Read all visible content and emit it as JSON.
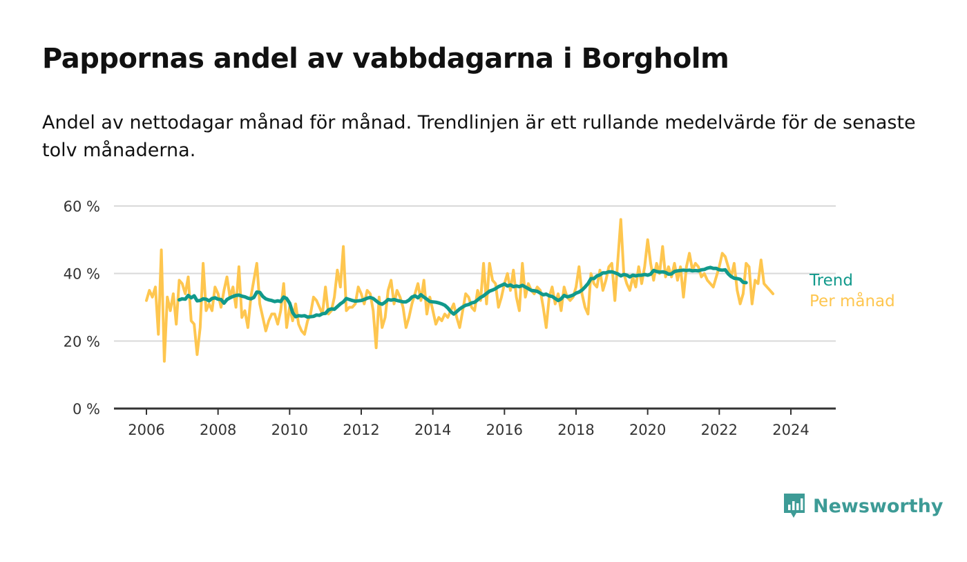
{
  "title": "Pappornas andel av vabbdagarna i Borgholm",
  "subtitle": "Andel av nettodagar månad för månad. Trendlinjen är ett rullande medelvärde för de senaste tolv månaderna.",
  "brand": {
    "name": "Newsworthy",
    "color": "#3d9b96"
  },
  "chart_data": {
    "type": "line",
    "title": "Pappornas andel av vabbdagarna i Borgholm",
    "xlabel": "",
    "ylabel": "",
    "xlim": [
      2006,
      2024.5
    ],
    "ylim": [
      0,
      60
    ],
    "x_ticks": [
      2006,
      2008,
      2010,
      2012,
      2014,
      2016,
      2018,
      2020,
      2022,
      2024
    ],
    "y_ticks": [
      0,
      20,
      40,
      60
    ],
    "y_tick_labels": [
      "0 %",
      "20 %",
      "40 %",
      "60 %"
    ],
    "grid": true,
    "legend": "direct labels at line ends",
    "series": [
      {
        "name": "Per månad",
        "color": "#fec64f",
        "x_start": 2006.0,
        "x_step_months": 1,
        "values": [
          32,
          35,
          33,
          36,
          22,
          47,
          14,
          33,
          29,
          34,
          25,
          38,
          37,
          34,
          39,
          26,
          25,
          16,
          24,
          43,
          29,
          31,
          29,
          36,
          34,
          30,
          35,
          39,
          33,
          36,
          30,
          42,
          27,
          29,
          24,
          33,
          38,
          43,
          31,
          27,
          23,
          26,
          28,
          28,
          25,
          29,
          37,
          24,
          30,
          26,
          31,
          25,
          23,
          22,
          26,
          28,
          33,
          32,
          30,
          28,
          36,
          28,
          29,
          33,
          41,
          36,
          48,
          29,
          30,
          30,
          31,
          36,
          34,
          31,
          35,
          34,
          29,
          18,
          33,
          24,
          27,
          35,
          38,
          31,
          35,
          33,
          30,
          24,
          27,
          31,
          34,
          37,
          32,
          38,
          28,
          33,
          29,
          25,
          27,
          26,
          28,
          27,
          29,
          31,
          27,
          24,
          29,
          34,
          33,
          30,
          29,
          35,
          32,
          43,
          31,
          43,
          38,
          37,
          30,
          33,
          37,
          40,
          35,
          41,
          33,
          29,
          43,
          33,
          37,
          35,
          34,
          36,
          35,
          30,
          24,
          33,
          36,
          31,
          34,
          29,
          36,
          33,
          32,
          33,
          36,
          42,
          34,
          30,
          28,
          40,
          37,
          36,
          41,
          35,
          38,
          42,
          43,
          32,
          44,
          56,
          40,
          37,
          35,
          39,
          36,
          42,
          37,
          42,
          50,
          43,
          38,
          43,
          40,
          48,
          39,
          42,
          39,
          43,
          38,
          42,
          33,
          42,
          46,
          41,
          43,
          42,
          39,
          40,
          38,
          37,
          36,
          39,
          42,
          46,
          45,
          42,
          39,
          43,
          35,
          31,
          34,
          43,
          42,
          31,
          38,
          37,
          44,
          37,
          36,
          35,
          34
        ]
      },
      {
        "name": "Trend",
        "color": "#11998b",
        "x_start": 2006.917,
        "x_step_months": 1,
        "values": [
          32.2,
          32.5,
          32.4,
          33.5,
          32.8,
          33.4,
          31.9,
          32.0,
          32.5,
          32.4,
          31.9,
          32.6,
          32.8,
          32.4,
          32.3,
          31.2,
          32.3,
          32.8,
          33.2,
          33.5,
          33.6,
          33.3,
          33.1,
          32.7,
          32.5,
          32.9,
          34.5,
          34.4,
          33.2,
          32.5,
          32.2,
          32.0,
          31.7,
          31.9,
          31.7,
          33.0,
          32.6,
          31.2,
          28.4,
          27.2,
          27.5,
          27.4,
          27.5,
          27.1,
          27.2,
          27.3,
          27.7,
          27.6,
          28.1,
          28.2,
          29.2,
          29.5,
          29.4,
          30.2,
          31.0,
          31.6,
          32.6,
          32.3,
          32.0,
          31.8,
          31.9,
          32.0,
          32.3,
          32.7,
          32.9,
          32.6,
          31.9,
          31.2,
          30.9,
          31.5,
          32.3,
          32.1,
          32.3,
          32.0,
          31.8,
          31.6,
          31.6,
          32.1,
          33.0,
          33.4,
          32.8,
          33.7,
          33.0,
          32.4,
          31.7,
          31.6,
          31.5,
          31.3,
          31.0,
          30.6,
          29.8,
          28.7,
          28.0,
          28.7,
          29.5,
          30.1,
          30.6,
          30.8,
          31.3,
          31.5,
          32.2,
          32.9,
          33.4,
          34.1,
          34.8,
          35.1,
          35.5,
          36.1,
          36.5,
          36.9,
          36.3,
          36.6,
          36.1,
          36.3,
          36.1,
          36.5,
          36.0,
          35.5,
          35.0,
          34.9,
          34.7,
          34.2,
          33.7,
          33.9,
          33.4,
          33.2,
          32.6,
          32.0,
          32.5,
          33.5,
          33.1,
          33.3,
          33.6,
          34.2,
          34.5,
          35.1,
          36.0,
          37.0,
          38.5,
          38.5,
          39.3,
          39.6,
          40.2,
          40.2,
          40.5,
          40.5,
          40.2,
          39.9,
          39.3,
          39.7,
          39.5,
          39.0,
          39.5,
          39.3,
          39.5,
          39.5,
          39.7,
          39.5,
          39.8,
          40.9,
          40.6,
          40.4,
          40.5,
          40.3,
          39.8,
          39.9,
          40.6,
          40.8,
          40.9,
          41.0,
          40.9,
          41.0,
          40.8,
          40.9,
          40.8,
          41.1,
          41.2,
          41.6,
          41.8,
          41.5,
          41.5,
          41.1,
          41.0,
          41.1,
          39.9,
          39.1,
          38.6,
          38.5,
          38.3,
          37.4,
          37.3
        ]
      }
    ]
  }
}
